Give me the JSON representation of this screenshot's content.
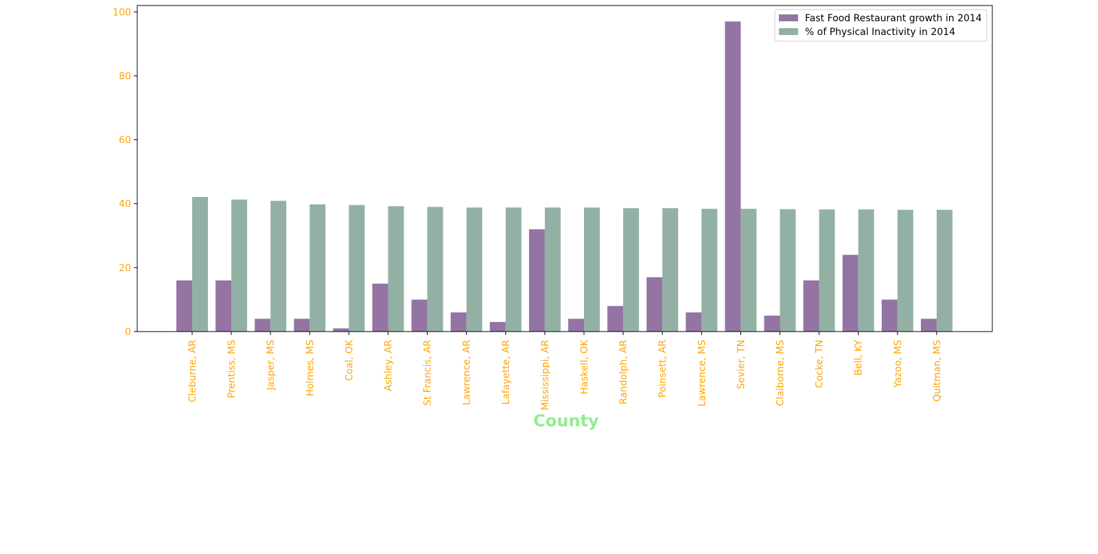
{
  "chart_data": {
    "type": "bar",
    "xlabel": "County",
    "ylabel": "",
    "title": "",
    "ylim": [
      0,
      102
    ],
    "yticks": [
      0,
      20,
      40,
      60,
      80,
      100
    ],
    "grid": false,
    "legend_position": "top-right",
    "categories": [
      "Cleburne, AR",
      "Prentiss, MS",
      "Jasper, MS",
      "Holmes, MS",
      "Coal, OK",
      "Ashley, AR",
      "St Francis, AR",
      "Lawrence, AR",
      "Lafayette, AR",
      "Mississippi, AR",
      "Haskell, OK",
      "Randolph, AR",
      "Poinsett, AR",
      "Lawrence, MS",
      "Sevier, TN",
      "Claiborne, MS",
      "Cocke, TN",
      "Bell, KY",
      "Yazoo, MS",
      "Quitman, MS"
    ],
    "series": [
      {
        "name": "Fast Food Restaurant growth in 2014",
        "color": "#9474a3",
        "values": [
          16,
          16,
          4,
          4,
          1,
          15,
          10,
          6,
          3,
          32,
          4,
          8,
          17,
          6,
          97,
          5,
          16,
          24,
          10,
          4
        ]
      },
      {
        "name": "% of Physical Inactivity in 2014",
        "color": "#92b1a4",
        "values": [
          42.1,
          41.3,
          40.9,
          39.8,
          39.6,
          39.2,
          39.0,
          38.8,
          38.8,
          38.8,
          38.8,
          38.6,
          38.6,
          38.4,
          38.4,
          38.3,
          38.2,
          38.2,
          38.1,
          38.1
        ]
      }
    ],
    "colors": {
      "tick_label": "#ffa500",
      "xlabel": "#90ee90",
      "axis": "#000000"
    }
  }
}
